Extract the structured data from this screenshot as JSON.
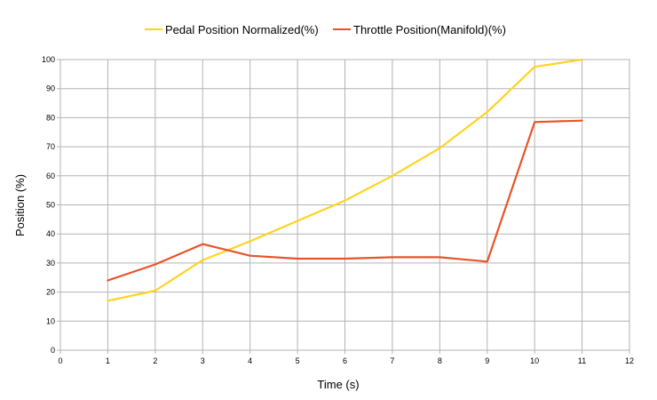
{
  "chart_data": {
    "type": "line",
    "xlabel": "Time (s)",
    "ylabel": "Position (%)",
    "xlim": [
      0,
      12
    ],
    "ylim": [
      0,
      100
    ],
    "x_ticks": [
      "0",
      "1",
      "2",
      "3",
      "4",
      "5",
      "6",
      "7",
      "8",
      "9",
      "10",
      "11",
      "12"
    ],
    "y_ticks": [
      "0",
      "10",
      "20",
      "30",
      "40",
      "50",
      "60",
      "70",
      "80",
      "90",
      "100"
    ],
    "grid": true,
    "legend_position": "top",
    "x": [
      1,
      2,
      3,
      4,
      5,
      6,
      7,
      8,
      9,
      10,
      11
    ],
    "series": [
      {
        "name": "Pedal Position Normalized(%)",
        "color": "#ffd320",
        "values": [
          17,
          20.5,
          31,
          37.5,
          44.5,
          51.5,
          60,
          69.5,
          82,
          97.5,
          100
        ]
      },
      {
        "name": "Throttle Position(Manifold)(%)",
        "color": "#e8532a",
        "values": [
          24,
          29.5,
          36.5,
          32.5,
          31.5,
          31.5,
          32,
          32,
          30.5,
          78.5,
          79
        ]
      }
    ]
  }
}
